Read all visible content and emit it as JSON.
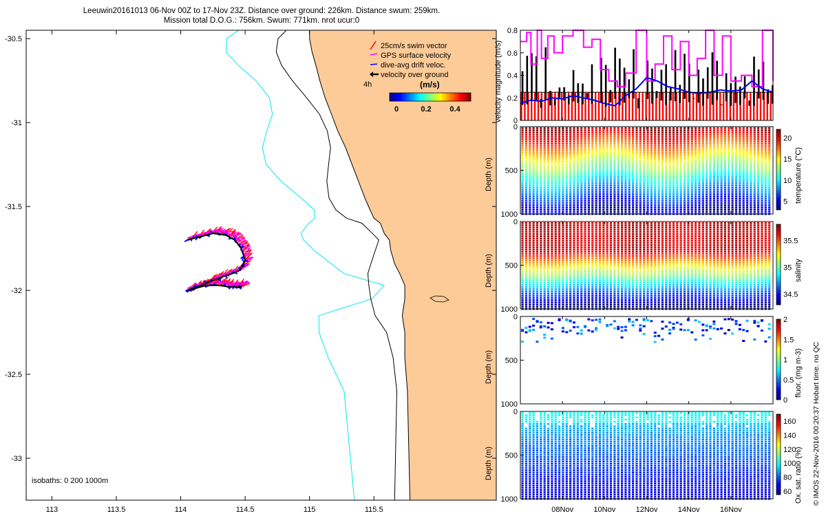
{
  "title_line1": "Leeuwin20161013 06-Nov 00Z to 17-Nov 23Z. Distance over ground: 226km. Distance swum: 259km.",
  "title_line2": "Mission total D.O.G.: 756km. Swum: 771km. nrot ucur:0",
  "credit": "© IMOS 22-Nov-2016 00:20:37 Hobart time. no QC",
  "colors": {
    "land": "#fccb98",
    "isobath_200": "#00e5ee",
    "swim": "#ff0000",
    "gps": "#ff00ff",
    "drift": "#0000ff",
    "ground": "#000000"
  },
  "chart_data": [
    {
      "type": "scatter",
      "name": "map",
      "x_ticks": [
        "113",
        "113.5",
        "114",
        "114.5",
        "115",
        "115.5"
      ],
      "x_tick_values": [
        113,
        113.5,
        114,
        114.5,
        115,
        115.5
      ],
      "y_ticks": [
        "-30.5",
        "-31",
        "-31.5",
        "-32",
        "-32.5",
        "-33"
      ],
      "y_tick_values": [
        -30.5,
        -31,
        -31.5,
        -32,
        -32.5,
        -33
      ],
      "xlim": [
        112.8,
        116.45
      ],
      "ylim": [
        -33.25,
        -30.45
      ],
      "isobaths_label": "isobaths: 0   200  1000m",
      "legend": {
        "entries": [
          "25cm/s swim vector",
          "GPS surface velocity",
          "dive-avg drift veloc.",
          "velocity over ground"
        ],
        "scale_label": "4h",
        "colorbar_title": "(m/s)",
        "colorbar_ticks": [
          "0",
          "0.2",
          "0.4"
        ]
      },
      "track_lon": [
        114.05,
        114.15,
        114.25,
        114.35,
        114.42,
        114.47,
        114.5,
        114.46,
        114.4,
        114.32,
        114.22,
        114.12,
        114.05,
        114.1,
        114.2,
        114.3,
        114.38,
        114.43,
        114.47
      ],
      "track_lat": [
        -31.7,
        -31.68,
        -31.66,
        -31.67,
        -31.7,
        -31.75,
        -31.82,
        -31.88,
        -31.9,
        -31.92,
        -31.95,
        -31.98,
        -32.0,
        -31.99,
        -31.97,
        -31.97,
        -31.98,
        -31.98,
        -31.98
      ],
      "coast_lon": [
        115.0,
        115.0,
        115.02,
        115.05,
        115.08,
        115.12,
        115.17,
        115.22,
        115.28,
        115.33,
        115.38,
        115.43,
        115.47,
        115.5,
        115.55,
        115.58,
        115.62,
        115.63,
        115.66,
        115.7,
        115.74,
        115.74,
        115.72,
        115.74,
        115.74,
        115.76,
        115.78
      ],
      "coast_lat": [
        -30.45,
        -30.5,
        -30.58,
        -30.66,
        -30.75,
        -30.85,
        -30.95,
        -31.05,
        -31.15,
        -31.25,
        -31.35,
        -31.45,
        -31.52,
        -31.57,
        -31.6,
        -31.66,
        -31.7,
        -31.76,
        -31.84,
        -31.9,
        -31.97,
        -32.05,
        -32.15,
        -32.25,
        -32.4,
        -32.6,
        -33.25
      ]
    },
    {
      "type": "line",
      "name": "velocity-magnitude",
      "ylabel": "velocity magnitude (m/s)",
      "ylim": [
        0,
        0.8
      ],
      "y_ticks": [
        "0",
        "0.2",
        "0.4",
        "0.6",
        "0.8"
      ],
      "y_tick_values": [
        0,
        0.2,
        0.4,
        0.6,
        0.8
      ],
      "xlim": [
        6.0,
        18.0
      ],
      "series": [
        {
          "name": "GPS surface velocity",
          "x": [
            6.0,
            6.3,
            6.5,
            6.8,
            7.0,
            7.3,
            7.6,
            8.0,
            8.5,
            9.0,
            9.4,
            9.8,
            10.2,
            10.6,
            11.0,
            11.5,
            12.0,
            12.4,
            12.8,
            13.2,
            13.6,
            14.0,
            14.4,
            14.8,
            15.2,
            15.6,
            16.0,
            16.5,
            17.0,
            17.5,
            18.0
          ],
          "values": [
            0.7,
            0.78,
            0.5,
            0.8,
            0.55,
            0.75,
            0.6,
            0.75,
            0.8,
            0.65,
            0.72,
            0.45,
            0.35,
            0.3,
            0.42,
            0.8,
            0.35,
            0.5,
            0.75,
            0.45,
            0.7,
            0.4,
            0.55,
            0.8,
            0.4,
            0.75,
            0.35,
            0.4,
            0.3,
            0.8,
            0.35
          ]
        },
        {
          "name": "dive-avg drift veloc.",
          "x": [
            6.0,
            6.5,
            7.0,
            7.5,
            8.0,
            8.5,
            9.0,
            9.5,
            10.0,
            10.5,
            11.0,
            11.5,
            12.0,
            12.5,
            13.0,
            13.5,
            14.0,
            14.5,
            15.0,
            15.5,
            16.0,
            16.5,
            17.0,
            17.5,
            18.0
          ],
          "values": [
            0.15,
            0.18,
            0.17,
            0.2,
            0.19,
            0.22,
            0.2,
            0.18,
            0.15,
            0.13,
            0.22,
            0.28,
            0.38,
            0.35,
            0.3,
            0.28,
            0.25,
            0.24,
            0.25,
            0.27,
            0.26,
            0.27,
            0.35,
            0.28,
            0.25
          ]
        },
        {
          "name": "25cm/s swim vector",
          "x": [
            6.0,
            18.0
          ],
          "values": [
            0.25,
            0.25
          ]
        }
      ]
    },
    {
      "type": "heatmap",
      "name": "temperature",
      "ylabel": "Depth (m)",
      "cbar_label": "temperature (°C)",
      "cbar_ticks": [
        "20",
        "15",
        "10",
        "5"
      ],
      "cbar_values": [
        20,
        15,
        10,
        5
      ],
      "crange": [
        3,
        22
      ],
      "ylim": [
        0,
        1000
      ],
      "y_ticks": [
        "0",
        "500",
        "1000"
      ]
    },
    {
      "type": "heatmap",
      "name": "salinity",
      "ylabel": "Depth (m)",
      "cbar_label": "salinity",
      "cbar_ticks": [
        "35.5",
        "35",
        "34.5"
      ],
      "cbar_values": [
        35.5,
        35,
        34.5
      ],
      "crange": [
        34.3,
        35.8
      ],
      "ylim": [
        0,
        1000
      ],
      "y_ticks": [
        "0",
        "500",
        "1000"
      ]
    },
    {
      "type": "heatmap",
      "name": "fluorescence",
      "ylabel": "Depth (m)",
      "cbar_label": "fluor. (mg m-3)",
      "cbar_ticks": [
        "2",
        "1.5",
        "1",
        "0.5",
        "0"
      ],
      "cbar_values": [
        2,
        1.5,
        1,
        0.5,
        0
      ],
      "crange": [
        0,
        2
      ],
      "ylim": [
        0,
        1000
      ],
      "y_ticks": [
        "0",
        "500",
        "1000"
      ]
    },
    {
      "type": "heatmap",
      "name": "oxygen",
      "ylabel": "Depth (m)",
      "cbar_label": "Ox. sat. ratio (%)",
      "cbar_ticks": [
        "160",
        "140",
        "120",
        "100",
        "80",
        "60"
      ],
      "cbar_values": [
        160,
        140,
        120,
        100,
        80,
        60
      ],
      "crange": [
        55,
        170
      ],
      "ylim": [
        0,
        1000
      ],
      "y_ticks": [
        "0",
        "500",
        "1000"
      ],
      "x_ticks": [
        "08Nov",
        "10Nov",
        "12Nov",
        "14Nov",
        "16Nov"
      ],
      "x_tick_values": [
        8,
        10,
        12,
        14,
        16
      ],
      "xlim": [
        6.0,
        18.0
      ]
    }
  ]
}
